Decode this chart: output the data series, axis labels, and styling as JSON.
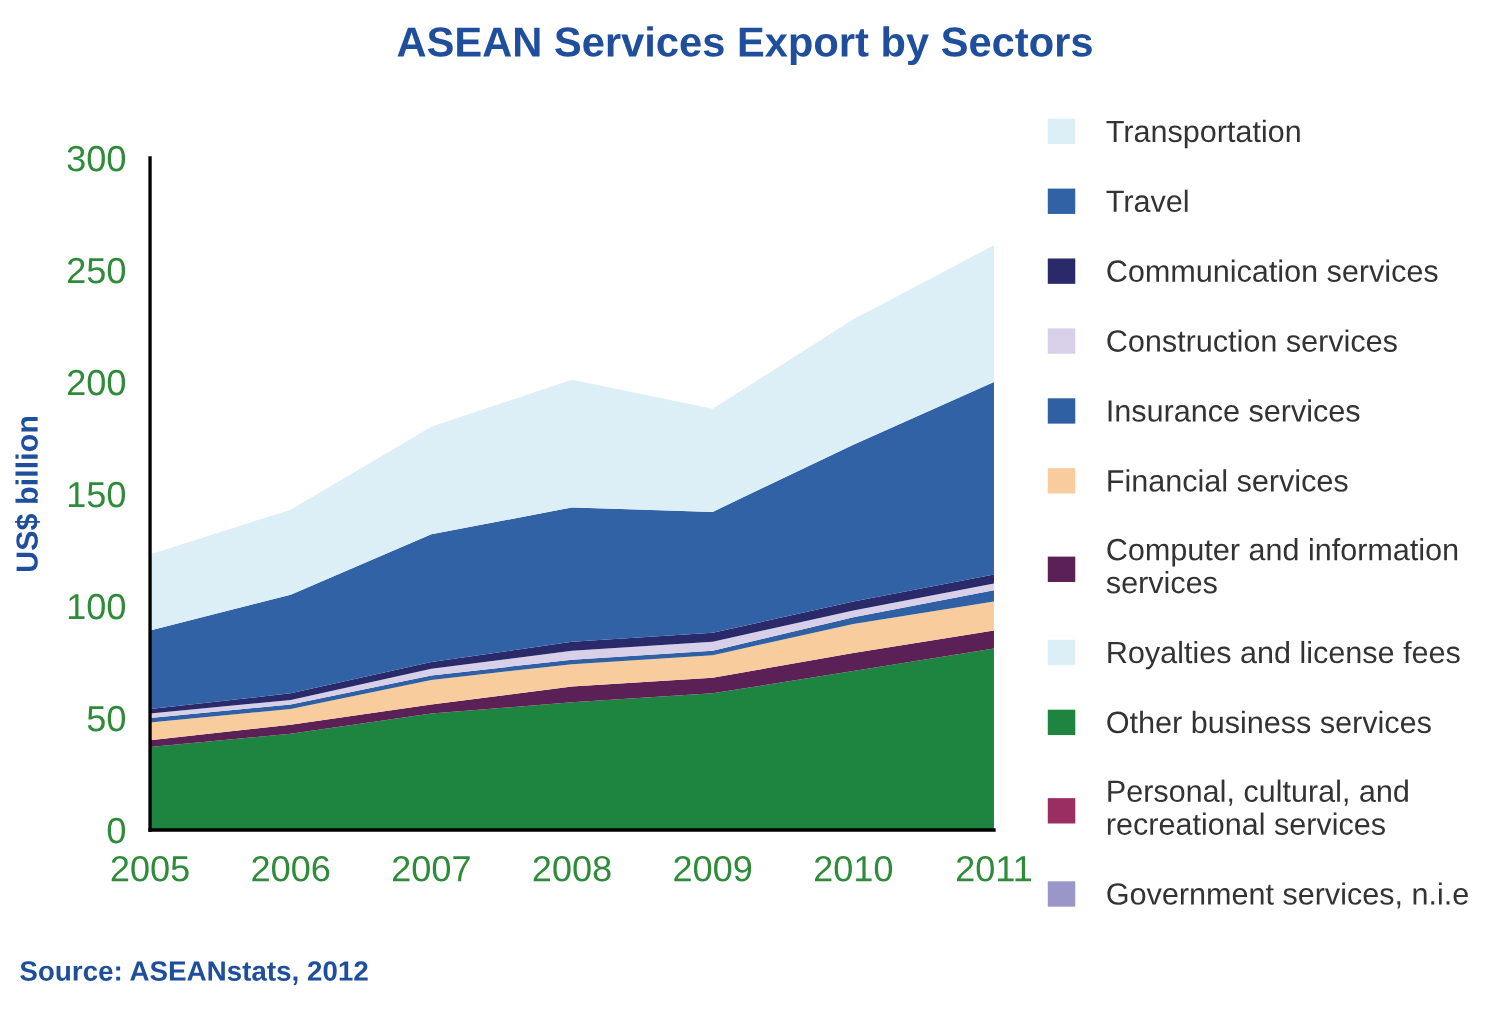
{
  "chart_data": {
    "type": "area",
    "stacked": true,
    "title": "ASEAN Services Export by Sectors",
    "ylabel": "US$ billion",
    "x": [
      "2005",
      "2006",
      "2007",
      "2008",
      "2009",
      "2010",
      "2011"
    ],
    "xlim": [
      "2005",
      "2011"
    ],
    "xticks": [
      "2005",
      "2006",
      "2007",
      "2008",
      "2009",
      "2010",
      "2011"
    ],
    "ylim": [
      0,
      300
    ],
    "yticks": [
      0,
      50,
      100,
      150,
      200,
      250,
      300
    ],
    "grid": false,
    "legend": "right",
    "annotations": [
      "Source: ASEANstats, 2012"
    ],
    "series": [
      {
        "name": "Government services, n.i.e",
        "color": "#9a96c8",
        "values": [
          null,
          null,
          null,
          null,
          null,
          null,
          null
        ]
      },
      {
        "name": "Personal, cultural, and\nrecreational services",
        "color": "#9a2d62",
        "values": [
          null,
          null,
          null,
          null,
          null,
          null,
          null
        ]
      },
      {
        "name": "Other business services",
        "color": "#1e8540",
        "values": [
          37,
          43,
          52,
          57,
          61,
          71,
          81
        ]
      },
      {
        "name": "Royalties and license fees",
        "color": "#dceef6",
        "values": [
          null,
          null,
          null,
          null,
          null,
          null,
          null
        ]
      },
      {
        "name": "Computer and information\nservices",
        "color": "#5b2055",
        "values": [
          3,
          4,
          4,
          7,
          7,
          8,
          8
        ]
      },
      {
        "name": "Financial services",
        "color": "#f9cc9d",
        "values": [
          8,
          7,
          11,
          10,
          10,
          13,
          13
        ]
      },
      {
        "name": "Insurance services",
        "color": "#3060a4",
        "values": [
          2,
          2,
          2,
          2,
          2,
          3,
          5
        ]
      },
      {
        "name": "Construction services",
        "color": "#d8d0e8",
        "values": [
          2,
          2,
          3,
          4,
          4,
          3,
          3
        ]
      },
      {
        "name": "Communication services",
        "color": "#2a2a6a",
        "values": [
          2,
          3,
          3,
          4,
          4,
          4,
          4
        ]
      },
      {
        "name": "Travel",
        "color": "#3162a6",
        "values": [
          35,
          44,
          57,
          60,
          54,
          70,
          86
        ]
      },
      {
        "name": "Transportation",
        "color": "#dceef6",
        "values": [
          34,
          38,
          48,
          57,
          46,
          56,
          61
        ]
      }
    ]
  }
}
